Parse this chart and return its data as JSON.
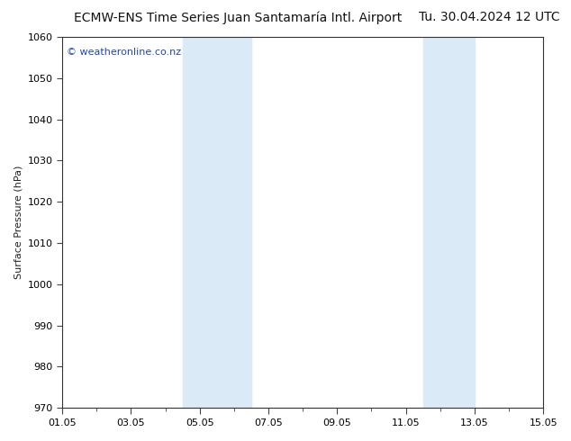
{
  "title_left": "ECMW-ENS Time Series Juan Santamaría Intl. Airport",
  "title_right": "Tu. 30.04.2024 12 UTC",
  "ylabel": "Surface Pressure (hPa)",
  "ylim": [
    970,
    1060
  ],
  "yticks": [
    970,
    980,
    990,
    1000,
    1010,
    1020,
    1030,
    1040,
    1050,
    1060
  ],
  "xlim_days": [
    0,
    14
  ],
  "xtick_labels": [
    "01.05",
    "03.05",
    "05.05",
    "07.05",
    "09.05",
    "11.05",
    "13.05",
    "15.05"
  ],
  "xtick_positions": [
    0,
    2,
    4,
    6,
    8,
    10,
    12,
    14
  ],
  "shaded_bands": [
    {
      "xmin": 3.5,
      "xmax": 5.5
    },
    {
      "xmin": 10.5,
      "xmax": 12.0
    }
  ],
  "band_color": "#daeaf6",
  "bg_color": "#ffffff",
  "plot_bg_color": "#ffffff",
  "watermark_text": "© weatheronline.co.nz",
  "watermark_color": "#2244bb",
  "title_fontsize": 10,
  "axis_label_fontsize": 8,
  "tick_fontsize": 8,
  "fig_width": 6.34,
  "fig_height": 4.9,
  "dpi": 100
}
